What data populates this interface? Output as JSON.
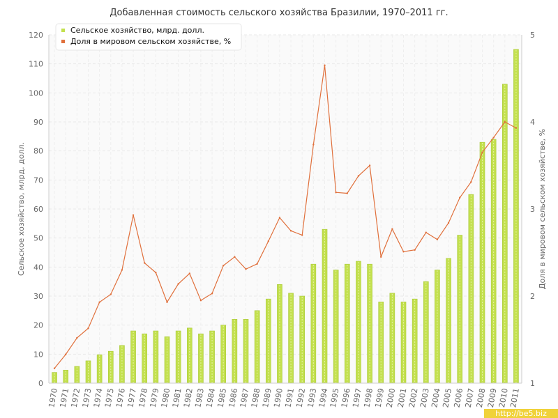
{
  "chart_data": {
    "type": "bar+line",
    "title": "Добавленная стоимость сельского хозяйства Бразилии, 1970–2011 гг.",
    "ylabel": "Сельское хозяйство, млрд. долл.",
    "y2label": "Доля в мировом сельском хозяйстве, %",
    "ylim": [
      0,
      120
    ],
    "y2lim": [
      1,
      5
    ],
    "y_ticks": [
      0,
      10,
      20,
      30,
      40,
      50,
      60,
      70,
      80,
      90,
      100,
      110,
      120
    ],
    "y2_ticks": [
      1,
      2,
      3,
      4,
      5
    ],
    "grid": true,
    "legend_position": "top-left",
    "categories": [
      "1970",
      "1971",
      "1972",
      "1973",
      "1974",
      "1975",
      "1976",
      "1977",
      "1978",
      "1979",
      "1980",
      "1981",
      "1982",
      "1983",
      "1984",
      "1985",
      "1986",
      "1987",
      "1988",
      "1989",
      "1990",
      "1991",
      "1992",
      "1993",
      "1994",
      "1995",
      "1996",
      "1997",
      "1998",
      "1999",
      "2000",
      "2001",
      "2002",
      "2003",
      "2004",
      "2005",
      "2006",
      "2007",
      "2008",
      "2009",
      "2010",
      "2011"
    ],
    "series": [
      {
        "name": "Сельское хозяйство, млрд. долл.",
        "type": "bar",
        "axis": "left",
        "color": "#c3e04e",
        "values": [
          3.7,
          4.5,
          5.8,
          7.7,
          9.8,
          11,
          13,
          18,
          17,
          18,
          16,
          18,
          19,
          17,
          18,
          20,
          22,
          22,
          25,
          29,
          34,
          31,
          30,
          41,
          53,
          39,
          41,
          42,
          41,
          28,
          31,
          28,
          29,
          35,
          39,
          43,
          51,
          65,
          83,
          84,
          103,
          115
        ]
      },
      {
        "name": "Доля в мировом сельском хозяйстве, %",
        "type": "line",
        "axis": "right",
        "color": "#e0703c",
        "values": [
          1.17,
          1.33,
          1.52,
          1.63,
          1.93,
          2.02,
          2.3,
          2.93,
          2.38,
          2.27,
          1.93,
          2.14,
          2.26,
          1.95,
          2.03,
          2.35,
          2.45,
          2.31,
          2.37,
          2.63,
          2.9,
          2.75,
          2.7,
          3.74,
          4.65,
          3.19,
          3.18,
          3.38,
          3.5,
          2.45,
          2.77,
          2.51,
          2.53,
          2.73,
          2.65,
          2.84,
          3.13,
          3.31,
          3.65,
          3.82,
          4.0,
          3.93
        ]
      }
    ]
  },
  "watermark": "http://be5.biz"
}
